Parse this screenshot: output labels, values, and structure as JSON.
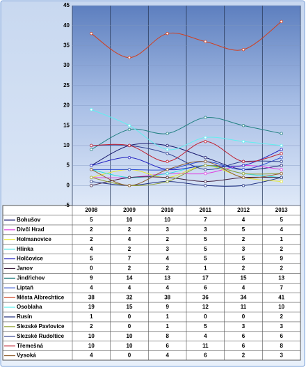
{
  "chart_data": {
    "type": "line",
    "categories": [
      "2008",
      "2009",
      "2010",
      "2011",
      "2012",
      "2013"
    ],
    "ylim": [
      -5,
      45
    ],
    "yticks": [
      -5,
      0,
      5,
      10,
      15,
      20,
      25,
      30,
      35,
      40,
      45
    ],
    "grid": true,
    "series": [
      {
        "name": "Bohušov",
        "color": "#1a1a6e",
        "values": [
          5,
          10,
          10,
          7,
          4,
          5
        ]
      },
      {
        "name": "Dívčí Hrad",
        "color": "#e040e0",
        "values": [
          2,
          2,
          3,
          3,
          5,
          4
        ]
      },
      {
        "name": "Holmanovice",
        "color": "#e8e830",
        "values": [
          2,
          4,
          2,
          5,
          2,
          1
        ]
      },
      {
        "name": "Hlinka",
        "color": "#30e0e0",
        "values": [
          4,
          2,
          3,
          5,
          3,
          2
        ]
      },
      {
        "name": "Holčovice",
        "color": "#2020c0",
        "values": [
          5,
          7,
          4,
          5,
          5,
          9
        ]
      },
      {
        "name": "Janov",
        "color": "#402040",
        "values": [
          0,
          2,
          2,
          1,
          2,
          2
        ]
      },
      {
        "name": "Jindřichov",
        "color": "#208080",
        "values": [
          9,
          14,
          13,
          17,
          15,
          13
        ]
      },
      {
        "name": "Liptaň",
        "color": "#3050d0",
        "values": [
          4,
          4,
          4,
          6,
          4,
          7
        ]
      },
      {
        "name": "Města Albrechtice",
        "color": "#d04020",
        "values": [
          38,
          32,
          38,
          36,
          34,
          41
        ]
      },
      {
        "name": "Osoblaha",
        "color": "#60f0f0",
        "values": [
          19,
          15,
          9,
          12,
          11,
          10
        ]
      },
      {
        "name": "Rusín",
        "color": "#203080",
        "values": [
          1,
          0,
          1,
          0,
          0,
          2
        ]
      },
      {
        "name": "Slezské Pavlovice",
        "color": "#90a030",
        "values": [
          2,
          0,
          1,
          5,
          3,
          3
        ]
      },
      {
        "name": "Slezské Rudoltice",
        "color": "#304090",
        "values": [
          10,
          10,
          8,
          4,
          6,
          6
        ]
      },
      {
        "name": "Třemešná",
        "color": "#c02030",
        "values": [
          10,
          10,
          6,
          11,
          6,
          8
        ]
      },
      {
        "name": "Vysoká",
        "color": "#906030",
        "values": [
          4,
          0,
          4,
          6,
          2,
          3
        ]
      }
    ]
  }
}
